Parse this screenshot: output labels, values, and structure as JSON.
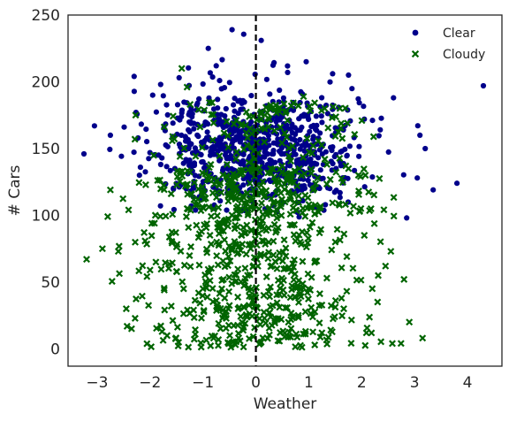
{
  "chart_data": {
    "type": "scatter",
    "title": "",
    "xlabel": "Weather",
    "ylabel": "# Cars",
    "xlim": [
      -3.55,
      4.65
    ],
    "ylim": [
      -13,
      250
    ],
    "xticks": [
      -3,
      -2,
      -1,
      0,
      1,
      2,
      3,
      4
    ],
    "yticks": [
      0,
      50,
      100,
      150,
      200,
      250
    ],
    "grid": false,
    "legend_position": "top-right",
    "reference_line": {
      "x": 0,
      "style": "dashed",
      "color": "#000000"
    },
    "series": [
      {
        "name": "Clear",
        "marker": "circle",
        "color": "#00008b",
        "sample_points": [
          [
            -3.25,
            146
          ],
          [
            -3.05,
            167
          ],
          [
            -2.75,
            160
          ],
          [
            -2.3,
            204
          ],
          [
            -2.2,
            130
          ],
          [
            -1.95,
            190
          ],
          [
            -1.8,
            198
          ],
          [
            -1.45,
            203
          ],
          [
            -1.2,
            176
          ],
          [
            -0.9,
            225
          ],
          [
            -0.75,
            212
          ],
          [
            -0.45,
            239
          ],
          [
            -0.3,
            186
          ],
          [
            0.1,
            231
          ],
          [
            0.6,
            207
          ],
          [
            0.95,
            215
          ],
          [
            1.45,
            206
          ],
          [
            1.75,
            205
          ],
          [
            2.05,
            172
          ],
          [
            2.35,
            164
          ],
          [
            2.6,
            188
          ],
          [
            3.05,
            128
          ],
          [
            3.1,
            160
          ],
          [
            3.2,
            150
          ],
          [
            3.35,
            119
          ],
          [
            3.8,
            124
          ],
          [
            4.3,
            197
          ],
          [
            2.85,
            98
          ],
          [
            -1.0,
            140
          ],
          [
            0.5,
            165
          ]
        ]
      },
      {
        "name": "Cloudy",
        "marker": "x",
        "color": "#006400",
        "sample_points": [
          [
            -3.2,
            67
          ],
          [
            -2.9,
            75
          ],
          [
            -2.75,
            119
          ],
          [
            -2.6,
            73
          ],
          [
            -2.45,
            30
          ],
          [
            -2.35,
            15
          ],
          [
            -2.0,
            59
          ],
          [
            -1.6,
            32
          ],
          [
            -1.4,
            210
          ],
          [
            -1.3,
            196
          ],
          [
            -0.8,
            8
          ],
          [
            0.1,
            5
          ],
          [
            0.9,
            189
          ],
          [
            1.5,
            80
          ],
          [
            1.75,
            135
          ],
          [
            2.05,
            85
          ],
          [
            2.3,
            35
          ],
          [
            2.45,
            62
          ],
          [
            2.55,
            73
          ],
          [
            2.9,
            20
          ],
          [
            3.15,
            8
          ],
          [
            2.8,
            52
          ],
          [
            1.3,
            180
          ],
          [
            -1.9,
            100
          ],
          [
            -1.0,
            45
          ],
          [
            0.4,
            60
          ],
          [
            0.8,
            25
          ],
          [
            -0.4,
            90
          ],
          [
            1.1,
            120
          ],
          [
            2.2,
            45
          ]
        ]
      }
    ]
  }
}
